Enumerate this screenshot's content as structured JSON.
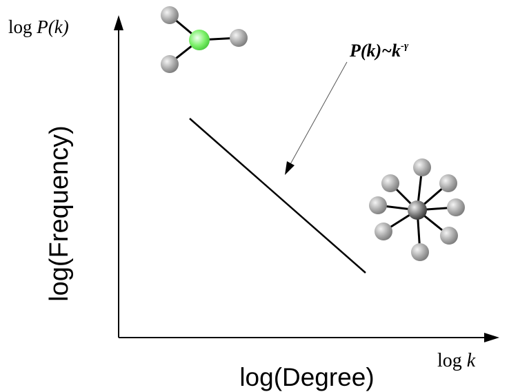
{
  "axes": {
    "y_symbol": {
      "log": "log",
      "var": "P(k)"
    },
    "x_symbol": {
      "log": "log",
      "var": "k"
    },
    "y_label": "log(Frequency)",
    "x_label": "log(Degree)"
  },
  "annotation": {
    "base": "P(k)~k",
    "exponent": "-γ"
  }
}
